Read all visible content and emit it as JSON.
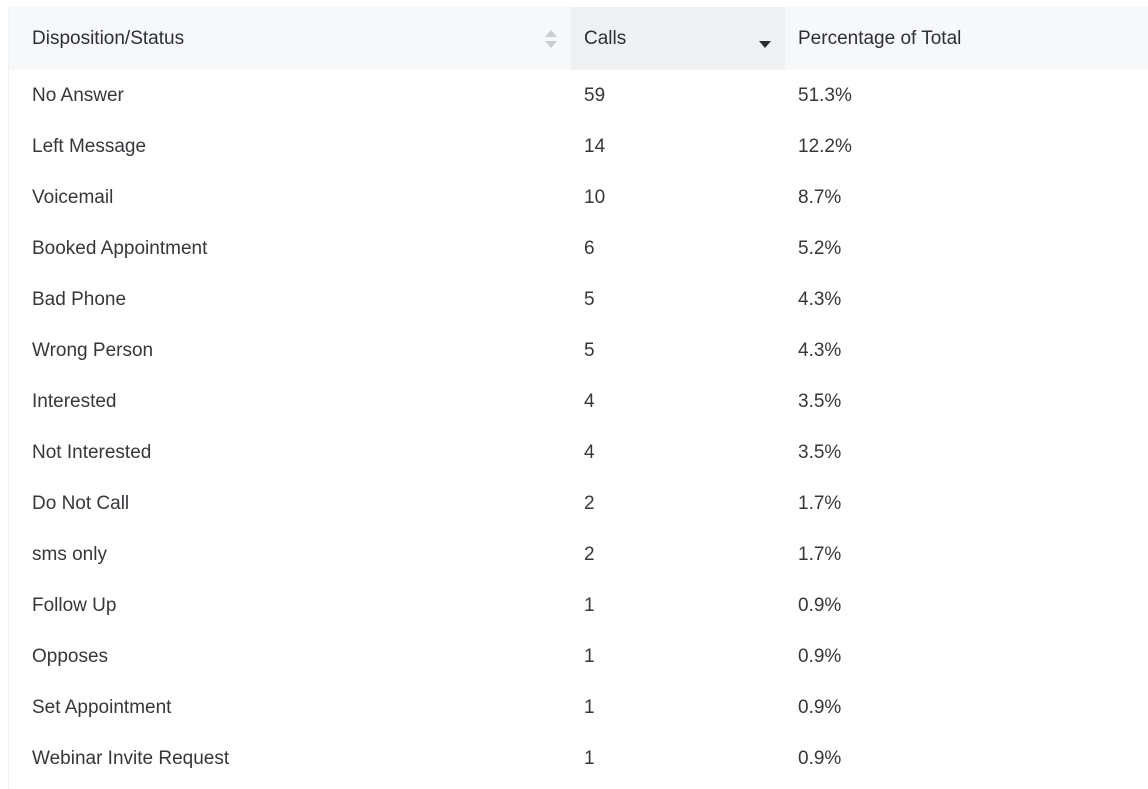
{
  "table": {
    "headers": {
      "disposition": "Disposition/Status",
      "calls": "Calls",
      "percentage": "Percentage of Total"
    },
    "sort": {
      "column": "calls",
      "direction": "descending"
    },
    "rows": [
      {
        "status": "No Answer",
        "calls": "59",
        "pct": "51.3%"
      },
      {
        "status": "Left Message",
        "calls": "14",
        "pct": "12.2%"
      },
      {
        "status": "Voicemail",
        "calls": "10",
        "pct": "8.7%"
      },
      {
        "status": "Booked Appointment",
        "calls": "6",
        "pct": "5.2%"
      },
      {
        "status": "Bad Phone",
        "calls": "5",
        "pct": "4.3%"
      },
      {
        "status": "Wrong Person",
        "calls": "5",
        "pct": "4.3%"
      },
      {
        "status": "Interested",
        "calls": "4",
        "pct": "3.5%"
      },
      {
        "status": "Not Interested",
        "calls": "4",
        "pct": "3.5%"
      },
      {
        "status": "Do Not Call",
        "calls": "2",
        "pct": "1.7%"
      },
      {
        "status": "sms only",
        "calls": "2",
        "pct": "1.7%"
      },
      {
        "status": "Follow Up",
        "calls": "1",
        "pct": "0.9%"
      },
      {
        "status": "Opposes",
        "calls": "1",
        "pct": "0.9%"
      },
      {
        "status": "Set Appointment",
        "calls": "1",
        "pct": "0.9%"
      },
      {
        "status": "Webinar Invite Request",
        "calls": "1",
        "pct": "0.9%"
      }
    ]
  }
}
